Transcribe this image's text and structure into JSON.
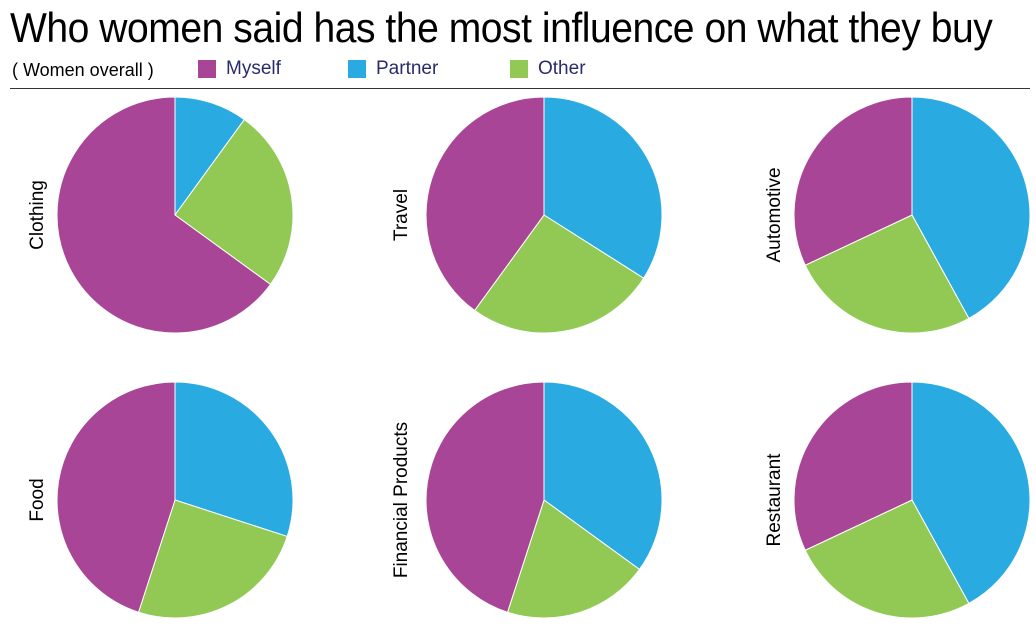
{
  "title": "Who women said has the most influence on what they buy",
  "subtitle": "( Women overall )",
  "legend": {
    "items": [
      {
        "label": "Myself",
        "color": "#a94597"
      },
      {
        "label": "Partner",
        "color": "#29abe2"
      },
      {
        "label": "Other",
        "color": "#92c954"
      }
    ]
  },
  "chart_data": [
    {
      "type": "pie",
      "category": "Clothing",
      "labels": [
        "Partner",
        "Other",
        "Myself"
      ],
      "values": [
        10,
        25,
        65
      ]
    },
    {
      "type": "pie",
      "category": "Travel",
      "labels": [
        "Partner",
        "Other",
        "Myself"
      ],
      "values": [
        34,
        26,
        40
      ]
    },
    {
      "type": "pie",
      "category": "Automotive",
      "labels": [
        "Partner",
        "Other",
        "Myself"
      ],
      "values": [
        42,
        26,
        32
      ]
    },
    {
      "type": "pie",
      "category": "Food",
      "labels": [
        "Partner",
        "Other",
        "Myself"
      ],
      "values": [
        30,
        25,
        45
      ]
    },
    {
      "type": "pie",
      "category": "Financial Products",
      "labels": [
        "Partner",
        "Other",
        "Myself"
      ],
      "values": [
        35,
        20,
        45
      ]
    },
    {
      "type": "pie",
      "category": "Restaurant",
      "labels": [
        "Partner",
        "Other",
        "Myself"
      ],
      "values": [
        42,
        26,
        32
      ]
    }
  ]
}
